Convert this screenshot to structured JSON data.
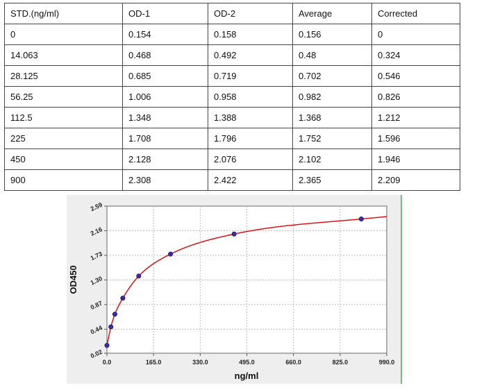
{
  "table": {
    "headers": [
      "STD.(ng/ml)",
      "OD-1",
      "OD-2",
      "Average",
      "Corrected"
    ],
    "rows": [
      [
        "0",
        "0.154",
        "0.158",
        "0.156",
        "0"
      ],
      [
        "14.063",
        "0.468",
        "0.492",
        "0.48",
        "0.324"
      ],
      [
        "28.125",
        "0.685",
        "0.719",
        "0.702",
        "0.546"
      ],
      [
        "56.25",
        "1.006",
        "0.958",
        "0.982",
        "0.826"
      ],
      [
        "112.5",
        "1.348",
        "1.388",
        "1.368",
        "1.212"
      ],
      [
        "225",
        "1.708",
        "1.796",
        "1.752",
        "1.596"
      ],
      [
        "450",
        "2.128",
        "2.076",
        "2.102",
        "1.946"
      ],
      [
        "900",
        "2.308",
        "2.422",
        "2.365",
        "2.209"
      ]
    ]
  },
  "chart_data": {
    "type": "scatter",
    "xlabel": "ng/ml",
    "ylabel": "OD450",
    "xlim": [
      0,
      990
    ],
    "ylim": [
      0.02,
      2.59
    ],
    "xticks": [
      "0.0",
      "165.0",
      "330.0",
      "495.0",
      "660.0",
      "825.0",
      "990.0"
    ],
    "yticks": [
      "0.02",
      "0.44",
      "0.87",
      "1.30",
      "1.73",
      "2.16",
      "2.59"
    ],
    "points": {
      "x": [
        0,
        14.063,
        28.125,
        56.25,
        112.5,
        225,
        450,
        900
      ],
      "y": [
        0.156,
        0.48,
        0.702,
        0.982,
        1.368,
        1.752,
        2.102,
        2.365
      ]
    },
    "fit_curve": true,
    "grid": true,
    "colors": {
      "curve": "#dd1111",
      "points": "#3a2aa6",
      "background": "#eeeeee"
    }
  }
}
